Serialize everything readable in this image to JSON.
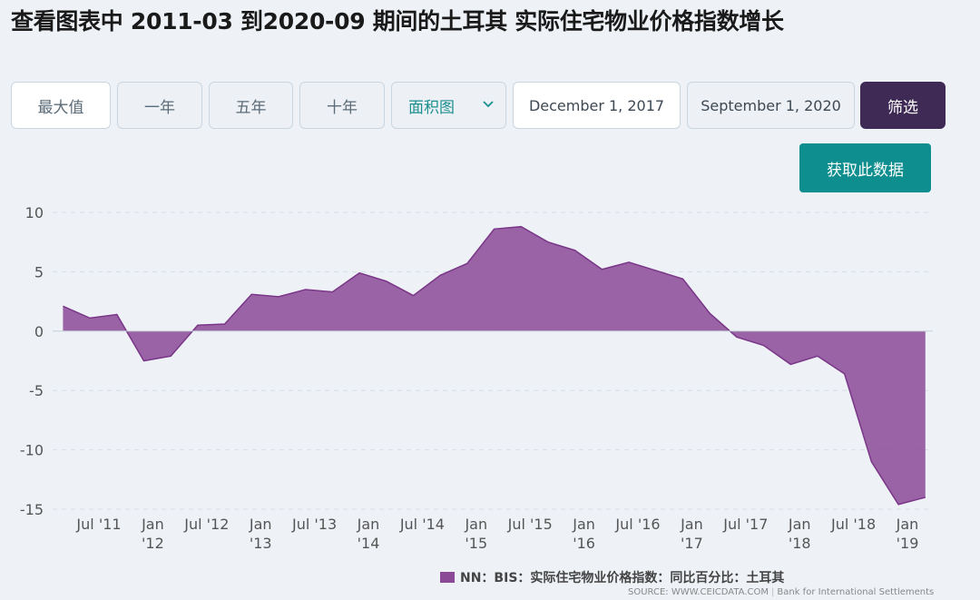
{
  "header": {
    "title": "查看图表中 2011-03 到2020-09 期间的土耳其 实际住宅物业价格指数增长"
  },
  "controls": {
    "range_buttons": [
      "最大值",
      "一年",
      "五年",
      "十年"
    ],
    "chart_type": "面积图",
    "start_date": "December 1, 2017",
    "end_date": "September 1, 2020",
    "filter_label": "筛选",
    "get_data_label": "获取此数据"
  },
  "legend": {
    "label": "NN：BIS：实际住宅物业价格指数：同比百分比：土耳其"
  },
  "source": {
    "left": "SOURCE: WWW.CEICDATA.COM",
    "right": "Bank for International Settlements"
  },
  "colors": {
    "series": "#8b4a96",
    "filter_button": "#3f2a56",
    "get_data_button": "#0e8e8e"
  },
  "chart_data": {
    "type": "area",
    "title": "",
    "xlabel": "",
    "ylabel": "",
    "ylim": [
      -15,
      10
    ],
    "yticks": [
      10,
      5,
      0,
      -5,
      -10,
      -15
    ],
    "grid": true,
    "legend_position": "bottom-right",
    "x_ticks": [
      {
        "date": "2011-07",
        "line1": "Jul '11",
        "line2": ""
      },
      {
        "date": "2012-01",
        "line1": "Jan",
        "line2": "'12"
      },
      {
        "date": "2012-07",
        "line1": "Jul '12",
        "line2": ""
      },
      {
        "date": "2013-01",
        "line1": "Jan",
        "line2": "'13"
      },
      {
        "date": "2013-07",
        "line1": "Jul '13",
        "line2": ""
      },
      {
        "date": "2014-01",
        "line1": "Jan",
        "line2": "'14"
      },
      {
        "date": "2014-07",
        "line1": "Jul '14",
        "line2": ""
      },
      {
        "date": "2015-01",
        "line1": "Jan",
        "line2": "'15"
      },
      {
        "date": "2015-07",
        "line1": "Jul '15",
        "line2": ""
      },
      {
        "date": "2016-01",
        "line1": "Jan",
        "line2": "'16"
      },
      {
        "date": "2016-07",
        "line1": "Jul '16",
        "line2": ""
      },
      {
        "date": "2017-01",
        "line1": "Jan",
        "line2": "'17"
      },
      {
        "date": "2017-07",
        "line1": "Jul '17",
        "line2": ""
      },
      {
        "date": "2018-01",
        "line1": "Jan",
        "line2": "'18"
      },
      {
        "date": "2018-07",
        "line1": "Jul '18",
        "line2": ""
      },
      {
        "date": "2019-01",
        "line1": "Jan",
        "line2": "'19"
      }
    ],
    "series": [
      {
        "name": "NN：BIS：实际住宅物业价格指数：同比百分比：土耳其",
        "x": [
          "2011-03",
          "2011-06",
          "2011-09",
          "2011-12",
          "2012-03",
          "2012-06",
          "2012-09",
          "2012-12",
          "2013-03",
          "2013-06",
          "2013-09",
          "2013-12",
          "2014-03",
          "2014-06",
          "2014-09",
          "2014-12",
          "2015-03",
          "2015-06",
          "2015-09",
          "2015-12",
          "2016-03",
          "2016-06",
          "2016-09",
          "2016-12",
          "2017-03",
          "2017-06",
          "2017-09",
          "2017-12",
          "2018-03",
          "2018-06",
          "2018-09",
          "2018-12",
          "2019-03"
        ],
        "values": [
          2.1,
          1.1,
          1.4,
          -2.5,
          -2.1,
          0.5,
          0.6,
          3.1,
          2.9,
          3.5,
          3.3,
          4.9,
          4.2,
          3.0,
          4.7,
          5.7,
          8.6,
          8.8,
          7.5,
          6.8,
          5.2,
          5.8,
          5.1,
          4.4,
          1.5,
          -0.5,
          -1.2,
          -2.8,
          -2.1,
          -3.6,
          -11.0,
          -14.6,
          -14.0
        ]
      }
    ]
  }
}
